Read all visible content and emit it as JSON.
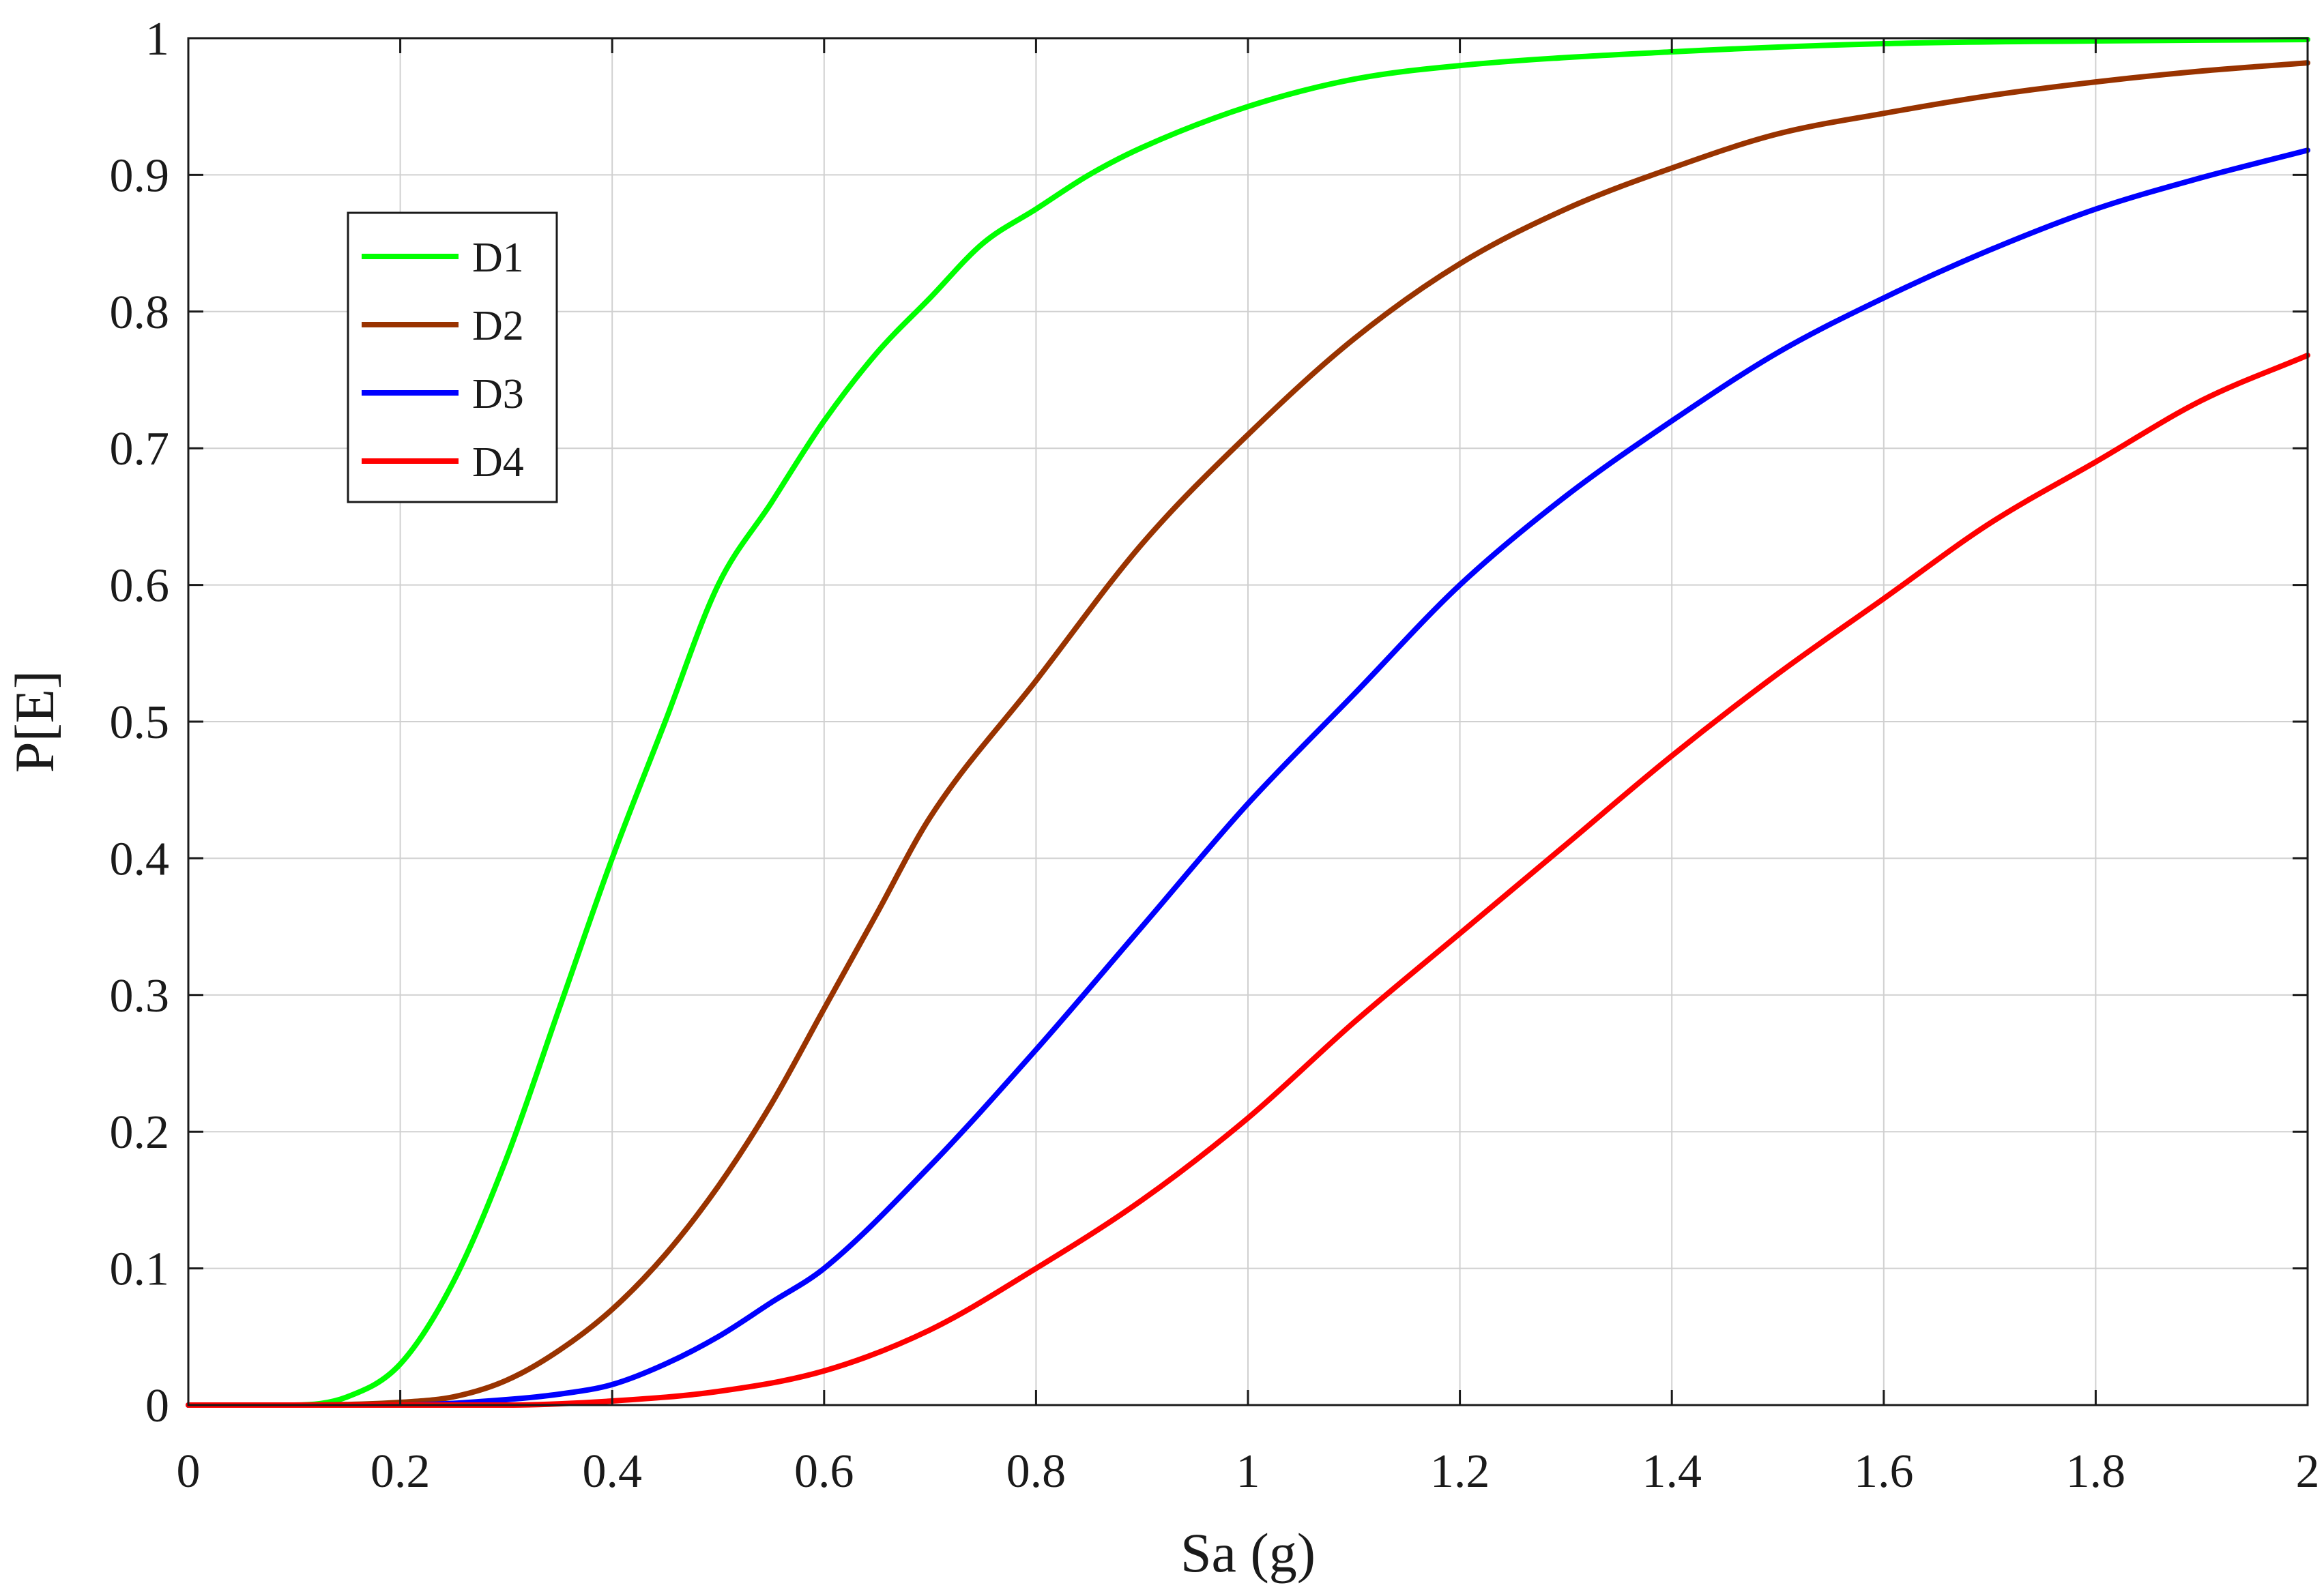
{
  "chart_data": {
    "type": "line",
    "xlabel": "Sa (g)",
    "ylabel": "P[E]",
    "xlim": [
      0,
      2
    ],
    "ylim": [
      0,
      1
    ],
    "xticks": [
      0,
      0.2,
      0.4,
      0.6,
      0.8,
      1,
      1.2,
      1.4,
      1.6,
      1.8,
      2
    ],
    "xtick_labels": [
      "0",
      "0.2",
      "0.4",
      "0.6",
      "0.8",
      "1",
      "1.2",
      "1.4",
      "1.6",
      "1.8",
      "2"
    ],
    "yticks": [
      0,
      0.1,
      0.2,
      0.3,
      0.4,
      0.5,
      0.6,
      0.7,
      0.8,
      0.9,
      1
    ],
    "ytick_labels": [
      "0",
      "0.1",
      "0.2",
      "0.3",
      "0.4",
      "0.5",
      "0.6",
      "0.7",
      "0.8",
      "0.9",
      "1"
    ],
    "grid": true,
    "legend_position": "top-left",
    "series": [
      {
        "name": "D1",
        "color": "#00ff00",
        "x": [
          0,
          0.1,
          0.15,
          0.2,
          0.25,
          0.3,
          0.35,
          0.4,
          0.45,
          0.5,
          0.55,
          0.6,
          0.65,
          0.7,
          0.75,
          0.8,
          0.85,
          0.9,
          1.0,
          1.1,
          1.2,
          1.4,
          1.6,
          1.8,
          2.0
        ],
        "y": [
          0,
          0.0,
          0.006,
          0.03,
          0.09,
          0.18,
          0.29,
          0.4,
          0.5,
          0.6,
          0.66,
          0.72,
          0.77,
          0.81,
          0.85,
          0.875,
          0.9,
          0.92,
          0.95,
          0.97,
          0.98,
          0.99,
          0.996,
          0.998,
          0.999
        ]
      },
      {
        "name": "D2",
        "color": "#993300",
        "x": [
          0,
          0.1,
          0.2,
          0.25,
          0.3,
          0.35,
          0.4,
          0.45,
          0.5,
          0.55,
          0.6,
          0.65,
          0.7,
          0.8,
          0.9,
          1.0,
          1.1,
          1.2,
          1.3,
          1.4,
          1.5,
          1.6,
          1.7,
          1.8,
          1.9,
          2.0
        ],
        "y": [
          0,
          0.0,
          0.002,
          0.006,
          0.018,
          0.04,
          0.07,
          0.11,
          0.16,
          0.22,
          0.29,
          0.36,
          0.43,
          0.53,
          0.63,
          0.71,
          0.78,
          0.835,
          0.875,
          0.905,
          0.93,
          0.945,
          0.958,
          0.968,
          0.976,
          0.982
        ]
      },
      {
        "name": "D3",
        "color": "#0000ff",
        "x": [
          0,
          0.2,
          0.3,
          0.35,
          0.4,
          0.45,
          0.5,
          0.55,
          0.6,
          0.7,
          0.8,
          0.9,
          1.0,
          1.1,
          1.2,
          1.3,
          1.4,
          1.5,
          1.6,
          1.7,
          1.8,
          1.9,
          2.0
        ],
        "y": [
          0,
          0.0,
          0.004,
          0.008,
          0.015,
          0.03,
          0.05,
          0.075,
          0.1,
          0.175,
          0.26,
          0.35,
          0.44,
          0.52,
          0.6,
          0.665,
          0.72,
          0.77,
          0.81,
          0.845,
          0.875,
          0.898,
          0.918
        ]
      },
      {
        "name": "D4",
        "color": "#ff0000",
        "x": [
          0,
          0.3,
          0.4,
          0.5,
          0.6,
          0.7,
          0.8,
          0.9,
          1.0,
          1.1,
          1.2,
          1.3,
          1.4,
          1.5,
          1.6,
          1.7,
          1.8,
          1.9,
          2.0
        ],
        "y": [
          0,
          0.0,
          0.003,
          0.01,
          0.025,
          0.055,
          0.1,
          0.15,
          0.21,
          0.28,
          0.345,
          0.41,
          0.475,
          0.535,
          0.59,
          0.645,
          0.69,
          0.735,
          0.768
        ]
      }
    ]
  }
}
